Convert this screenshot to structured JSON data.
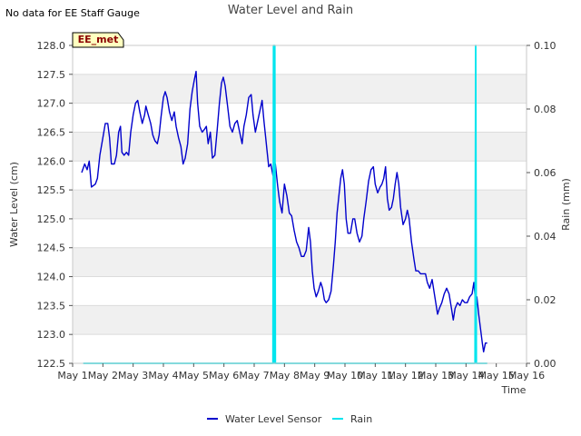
{
  "page": {
    "note": "No data for EE Staff Gauge",
    "station_tag": "EE_met"
  },
  "chart_data": {
    "type": "line",
    "title": "Water Level and Rain",
    "xlabel": "Time",
    "ylabel_left": "Water Level (cm)",
    "ylabel_right": "Rain (mm)",
    "x_domain_days": [
      1,
      16
    ],
    "x_ticks": [
      1,
      2,
      3,
      4,
      5,
      6,
      7,
      8,
      9,
      10,
      11,
      12,
      13,
      14,
      15,
      16
    ],
    "x_tick_labels": [
      "May 1",
      "May 2",
      "May 3",
      "May 4",
      "May 5",
      "May 6",
      "May 7",
      "May 8",
      "May 9",
      "May 10",
      "May 11",
      "May 12",
      "May 13",
      "May 14",
      "May 15",
      "May 16"
    ],
    "ylim_left": [
      122.5,
      128.0
    ],
    "yticks_left": [
      "122.5",
      "123.0",
      "123.5",
      "124.0",
      "124.5",
      "125.0",
      "125.5",
      "126.0",
      "126.5",
      "127.0",
      "127.5",
      "128.0"
    ],
    "ylim_right": [
      0.0,
      0.1
    ],
    "yticks_right": [
      "0.00",
      "0.02",
      "0.04",
      "0.06",
      "0.08",
      "0.10"
    ],
    "series": [
      {
        "name": "Water Level Sensor",
        "axis": "left",
        "color": "#0000cc",
        "points": [
          [
            1.3,
            125.8
          ],
          [
            1.4,
            125.95
          ],
          [
            1.48,
            125.85
          ],
          [
            1.55,
            126.0
          ],
          [
            1.62,
            125.55
          ],
          [
            1.75,
            125.6
          ],
          [
            1.82,
            125.7
          ],
          [
            1.9,
            126.1
          ],
          [
            2.0,
            126.4
          ],
          [
            2.08,
            126.65
          ],
          [
            2.16,
            126.65
          ],
          [
            2.22,
            126.4
          ],
          [
            2.28,
            125.95
          ],
          [
            2.38,
            125.95
          ],
          [
            2.45,
            126.1
          ],
          [
            2.52,
            126.5
          ],
          [
            2.58,
            126.6
          ],
          [
            2.63,
            126.15
          ],
          [
            2.7,
            126.1
          ],
          [
            2.78,
            126.15
          ],
          [
            2.85,
            126.1
          ],
          [
            2.92,
            126.5
          ],
          [
            3.0,
            126.8
          ],
          [
            3.08,
            127.0
          ],
          [
            3.15,
            127.05
          ],
          [
            3.22,
            126.85
          ],
          [
            3.3,
            126.65
          ],
          [
            3.38,
            126.8
          ],
          [
            3.42,
            126.95
          ],
          [
            3.5,
            126.8
          ],
          [
            3.58,
            126.65
          ],
          [
            3.65,
            126.45
          ],
          [
            3.72,
            126.35
          ],
          [
            3.8,
            126.3
          ],
          [
            3.86,
            126.45
          ],
          [
            3.92,
            126.75
          ],
          [
            4.0,
            127.1
          ],
          [
            4.06,
            127.2
          ],
          [
            4.12,
            127.1
          ],
          [
            4.2,
            126.85
          ],
          [
            4.28,
            126.7
          ],
          [
            4.36,
            126.85
          ],
          [
            4.42,
            126.6
          ],
          [
            4.5,
            126.4
          ],
          [
            4.58,
            126.25
          ],
          [
            4.65,
            125.95
          ],
          [
            4.72,
            126.05
          ],
          [
            4.8,
            126.3
          ],
          [
            4.88,
            126.9
          ],
          [
            4.95,
            127.2
          ],
          [
            5.02,
            127.4
          ],
          [
            5.08,
            127.55
          ],
          [
            5.13,
            127.0
          ],
          [
            5.2,
            126.6
          ],
          [
            5.28,
            126.5
          ],
          [
            5.36,
            126.55
          ],
          [
            5.42,
            126.6
          ],
          [
            5.48,
            126.3
          ],
          [
            5.55,
            126.5
          ],
          [
            5.62,
            126.05
          ],
          [
            5.7,
            126.1
          ],
          [
            5.78,
            126.55
          ],
          [
            5.85,
            127.0
          ],
          [
            5.92,
            127.35
          ],
          [
            5.98,
            127.45
          ],
          [
            6.04,
            127.3
          ],
          [
            6.12,
            126.95
          ],
          [
            6.2,
            126.6
          ],
          [
            6.28,
            126.5
          ],
          [
            6.36,
            126.65
          ],
          [
            6.44,
            126.7
          ],
          [
            6.52,
            126.5
          ],
          [
            6.6,
            126.3
          ],
          [
            6.66,
            126.6
          ],
          [
            6.74,
            126.8
          ],
          [
            6.82,
            127.1
          ],
          [
            6.9,
            127.15
          ],
          [
            6.96,
            126.8
          ],
          [
            7.04,
            126.5
          ],
          [
            7.12,
            126.7
          ],
          [
            7.2,
            126.9
          ],
          [
            7.26,
            127.05
          ],
          [
            7.32,
            126.7
          ],
          [
            7.38,
            126.4
          ],
          [
            7.42,
            126.2
          ],
          [
            7.48,
            125.9
          ],
          [
            7.55,
            125.95
          ],
          [
            7.62,
            125.75
          ],
          [
            7.7,
            125.95
          ],
          [
            7.78,
            125.55
          ],
          [
            7.84,
            125.3
          ],
          [
            7.92,
            125.1
          ],
          [
            8.0,
            125.6
          ],
          [
            8.08,
            125.4
          ],
          [
            8.16,
            125.1
          ],
          [
            8.24,
            125.05
          ],
          [
            8.32,
            124.8
          ],
          [
            8.4,
            124.6
          ],
          [
            8.48,
            124.5
          ],
          [
            8.56,
            124.35
          ],
          [
            8.64,
            124.35
          ],
          [
            8.72,
            124.45
          ],
          [
            8.8,
            124.85
          ],
          [
            8.86,
            124.6
          ],
          [
            8.92,
            124.1
          ],
          [
            8.98,
            123.8
          ],
          [
            9.05,
            123.65
          ],
          [
            9.12,
            123.75
          ],
          [
            9.2,
            123.9
          ],
          [
            9.26,
            123.8
          ],
          [
            9.32,
            123.6
          ],
          [
            9.38,
            123.55
          ],
          [
            9.46,
            123.6
          ],
          [
            9.54,
            123.75
          ],
          [
            9.62,
            124.2
          ],
          [
            9.68,
            124.6
          ],
          [
            9.74,
            125.1
          ],
          [
            9.8,
            125.4
          ],
          [
            9.86,
            125.7
          ],
          [
            9.92,
            125.85
          ],
          [
            9.98,
            125.6
          ],
          [
            10.04,
            125.0
          ],
          [
            10.1,
            124.75
          ],
          [
            10.18,
            124.75
          ],
          [
            10.26,
            125.0
          ],
          [
            10.32,
            125.0
          ],
          [
            10.4,
            124.75
          ],
          [
            10.48,
            124.6
          ],
          [
            10.56,
            124.7
          ],
          [
            10.62,
            125.0
          ],
          [
            10.7,
            125.3
          ],
          [
            10.78,
            125.65
          ],
          [
            10.86,
            125.85
          ],
          [
            10.94,
            125.9
          ],
          [
            11.0,
            125.6
          ],
          [
            11.08,
            125.45
          ],
          [
            11.16,
            125.55
          ],
          [
            11.22,
            125.6
          ],
          [
            11.28,
            125.7
          ],
          [
            11.34,
            125.9
          ],
          [
            11.4,
            125.35
          ],
          [
            11.46,
            125.15
          ],
          [
            11.54,
            125.2
          ],
          [
            11.6,
            125.35
          ],
          [
            11.66,
            125.6
          ],
          [
            11.72,
            125.8
          ],
          [
            11.78,
            125.6
          ],
          [
            11.84,
            125.2
          ],
          [
            11.92,
            124.9
          ],
          [
            12.0,
            125.0
          ],
          [
            12.06,
            125.15
          ],
          [
            12.12,
            125.0
          ],
          [
            12.2,
            124.6
          ],
          [
            12.28,
            124.3
          ],
          [
            12.34,
            124.1
          ],
          [
            12.42,
            124.1
          ],
          [
            12.5,
            124.05
          ],
          [
            12.58,
            124.05
          ],
          [
            12.66,
            124.05
          ],
          [
            12.72,
            123.9
          ],
          [
            12.8,
            123.8
          ],
          [
            12.88,
            123.95
          ],
          [
            12.94,
            123.75
          ],
          [
            13.0,
            123.55
          ],
          [
            13.06,
            123.35
          ],
          [
            13.12,
            123.45
          ],
          [
            13.2,
            123.55
          ],
          [
            13.28,
            123.7
          ],
          [
            13.36,
            123.8
          ],
          [
            13.44,
            123.7
          ],
          [
            13.52,
            123.45
          ],
          [
            13.58,
            123.25
          ],
          [
            13.64,
            123.45
          ],
          [
            13.72,
            123.55
          ],
          [
            13.8,
            123.5
          ],
          [
            13.88,
            123.6
          ],
          [
            13.96,
            123.55
          ],
          [
            14.04,
            123.55
          ],
          [
            14.12,
            123.65
          ],
          [
            14.2,
            123.7
          ],
          [
            14.26,
            123.9
          ],
          [
            14.32,
            123.55
          ],
          [
            14.36,
            123.65
          ],
          [
            14.42,
            123.35
          ],
          [
            14.48,
            123.1
          ],
          [
            14.54,
            122.85
          ],
          [
            14.58,
            122.7
          ],
          [
            14.64,
            122.85
          ],
          [
            14.7,
            122.85
          ]
        ]
      },
      {
        "name": "Rain",
        "axis": "right",
        "color": "#00e5ee",
        "points": [
          [
            1.35,
            0.0
          ],
          [
            7.62,
            0.0
          ],
          [
            7.64,
            0.1
          ],
          [
            7.66,
            0.0
          ],
          [
            7.68,
            0.1
          ],
          [
            7.7,
            0.0
          ],
          [
            14.3,
            0.0
          ],
          [
            14.32,
            0.1
          ],
          [
            14.34,
            0.0
          ],
          [
            14.7,
            0.0
          ]
        ]
      }
    ],
    "legend": {
      "position": "bottom-center",
      "entries": [
        {
          "label": "Water Level Sensor",
          "color": "#0000cc"
        },
        {
          "label": "Rain",
          "color": "#00e5ee"
        }
      ]
    }
  }
}
